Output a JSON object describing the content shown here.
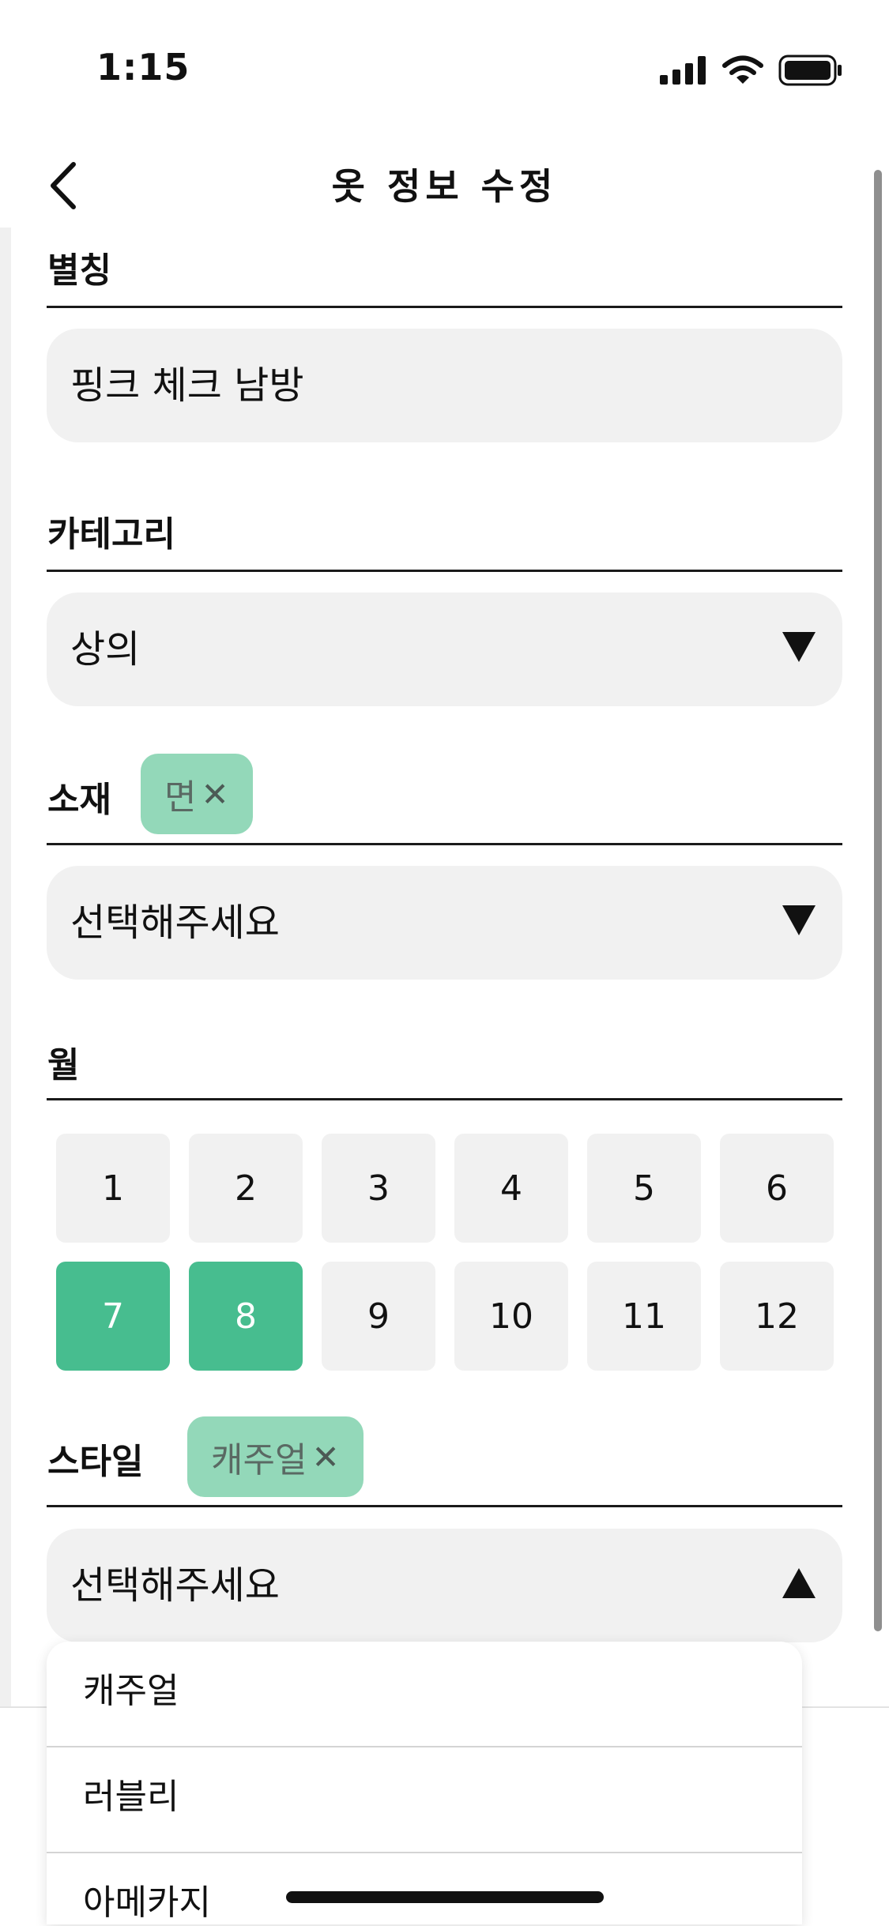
{
  "status_bar": {
    "time": "1:15",
    "icons": [
      "signal-icon",
      "wifi-icon",
      "battery-icon"
    ]
  },
  "nav": {
    "title": "옷 정보 수정",
    "back_icon": "chevron-left-icon"
  },
  "nickname": {
    "label": "별칭",
    "value": "핑크 체크 남방"
  },
  "category": {
    "label": "카테고리",
    "value": "상의",
    "arrow": "triangle-down-icon"
  },
  "material": {
    "label": "소재",
    "chips": [
      {
        "label": "면",
        "remove": "✕"
      }
    ],
    "placeholder": "선택해주세요",
    "arrow": "triangle-down-icon"
  },
  "month": {
    "label": "월",
    "options": [
      "1",
      "2",
      "3",
      "4",
      "5",
      "6",
      "7",
      "8",
      "9",
      "10",
      "11",
      "12"
    ],
    "selected": [
      "7",
      "8"
    ]
  },
  "style": {
    "label": "스타일",
    "chips": [
      {
        "label": "캐주얼",
        "remove": "✕"
      }
    ],
    "placeholder": "선택해주세요",
    "arrow": "triangle-up-icon",
    "options": [
      "캐주얼",
      "러블리",
      "아메카지"
    ]
  },
  "colors": {
    "accent": "#47bd8f",
    "chip": "#93d8b9",
    "field_bg": "#f1f1f1",
    "text": "#111111"
  }
}
